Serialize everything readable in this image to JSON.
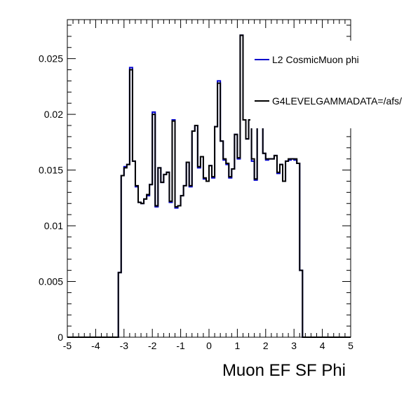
{
  "chart_data": {
    "type": "line",
    "title": "",
    "xlabel": "Muon EF SF Phi",
    "ylabel": "",
    "xlim": [
      -5,
      5
    ],
    "ylim": [
      0,
      0.0285
    ],
    "grid": false,
    "legend_position": "top-right",
    "x_ticks": [
      "-5",
      "-4",
      "-3",
      "-2",
      "-1",
      "0",
      "1",
      "2",
      "3",
      "4",
      "5"
    ],
    "y_ticks": [
      "0",
      "0.005",
      "0.01",
      "0.015",
      "0.02",
      "0.025"
    ],
    "bin_edges": [
      -5,
      -4.9,
      -4.8,
      -4.7,
      -4.6,
      -4.5,
      -4.4,
      -4.3,
      -4.2,
      -4.1,
      -4,
      -3.9,
      -3.8,
      -3.7,
      -3.6,
      -3.5,
      -3.4,
      -3.3,
      -3.2,
      -3.1,
      -3,
      -2.9,
      -2.8,
      -2.7,
      -2.6,
      -2.5,
      -2.4,
      -2.3,
      -2.2,
      -2.1,
      -2,
      -1.9,
      -1.8,
      -1.7,
      -1.6,
      -1.5,
      -1.4,
      -1.3,
      -1.2,
      -1.1,
      -1,
      -0.9,
      -0.8,
      -0.7,
      -0.6,
      -0.5,
      -0.4,
      -0.3,
      -0.2,
      -0.1,
      0,
      0.1,
      0.2,
      0.3,
      0.4,
      0.5,
      0.6,
      0.7,
      0.8,
      0.9,
      1,
      1.1,
      1.2,
      1.3,
      1.4,
      1.5,
      1.6,
      1.7,
      1.8,
      1.9,
      2,
      2.1,
      2.2,
      2.3,
      2.4,
      2.5,
      2.6,
      2.7,
      2.8,
      2.9,
      3,
      3.1,
      3.2,
      3.3,
      3.4,
      3.5,
      3.6,
      3.7,
      3.8,
      3.9,
      4,
      4.1,
      4.2,
      4.3,
      4.4,
      4.5,
      4.6,
      4.7,
      4.8,
      4.9,
      5
    ],
    "series": [
      {
        "name": "L2 CosmicMuon phi",
        "color": "#0000cc",
        "values": [
          0,
          0,
          0,
          0,
          0,
          0,
          0,
          0,
          0,
          0,
          0,
          0,
          0,
          0,
          0,
          0,
          0,
          0,
          0.0058,
          0.0145,
          0.0153,
          0.0155,
          0.0242,
          0.0158,
          0.0135,
          0.0121,
          0.012,
          0.0124,
          0.0127,
          0.0137,
          0.0202,
          0.0117,
          0.0152,
          0.0139,
          0.0146,
          0.0148,
          0.0121,
          0.0195,
          0.0116,
          0.0118,
          0.0127,
          0.0136,
          0.0157,
          0.0135,
          0.0185,
          0.019,
          0.0152,
          0.0162,
          0.0142,
          0.014,
          0.0154,
          0.0143,
          0.0189,
          0.023,
          0.0176,
          0.0159,
          0.0155,
          0.0143,
          0.0151,
          0.0182,
          0.016,
          0.0271,
          0.0195,
          0.0178,
          0.0195,
          0.0158,
          0.0141,
          0.0195,
          0.0195,
          0.0165,
          0.0159,
          0.016,
          0.016,
          0.0163,
          0.0147,
          0.0155,
          0.014,
          0.0158,
          0.0159,
          0.016,
          0.0159,
          0.0156,
          0.006,
          0,
          0,
          0,
          0,
          0,
          0,
          0,
          0,
          0,
          0,
          0,
          0,
          0,
          0,
          0,
          0,
          0
        ]
      },
      {
        "name": "G4LEVELGAMMADATA=/afs/",
        "color": "#000000",
        "values": [
          0,
          0,
          0,
          0,
          0,
          0,
          0,
          0,
          0,
          0,
          0,
          0,
          0,
          0,
          0,
          0,
          0,
          0,
          0.0058,
          0.0145,
          0.0152,
          0.0155,
          0.024,
          0.0158,
          0.0136,
          0.0121,
          0.012,
          0.0124,
          0.0128,
          0.0137,
          0.02,
          0.0118,
          0.0152,
          0.0139,
          0.0146,
          0.0148,
          0.0122,
          0.0194,
          0.0117,
          0.0118,
          0.0127,
          0.0136,
          0.0157,
          0.0136,
          0.0185,
          0.019,
          0.0153,
          0.0162,
          0.0143,
          0.014,
          0.0154,
          0.0144,
          0.0189,
          0.0228,
          0.0176,
          0.016,
          0.0156,
          0.0144,
          0.0151,
          0.0182,
          0.0161,
          0.0271,
          0.0195,
          0.0178,
          0.0195,
          0.016,
          0.0142,
          0.0195,
          0.0195,
          0.0165,
          0.016,
          0.016,
          0.016,
          0.0163,
          0.0148,
          0.0155,
          0.014,
          0.0158,
          0.016,
          0.016,
          0.016,
          0.0156,
          0.006,
          0,
          0,
          0,
          0,
          0,
          0,
          0,
          0,
          0,
          0,
          0,
          0,
          0,
          0,
          0,
          0,
          0
        ]
      }
    ]
  }
}
